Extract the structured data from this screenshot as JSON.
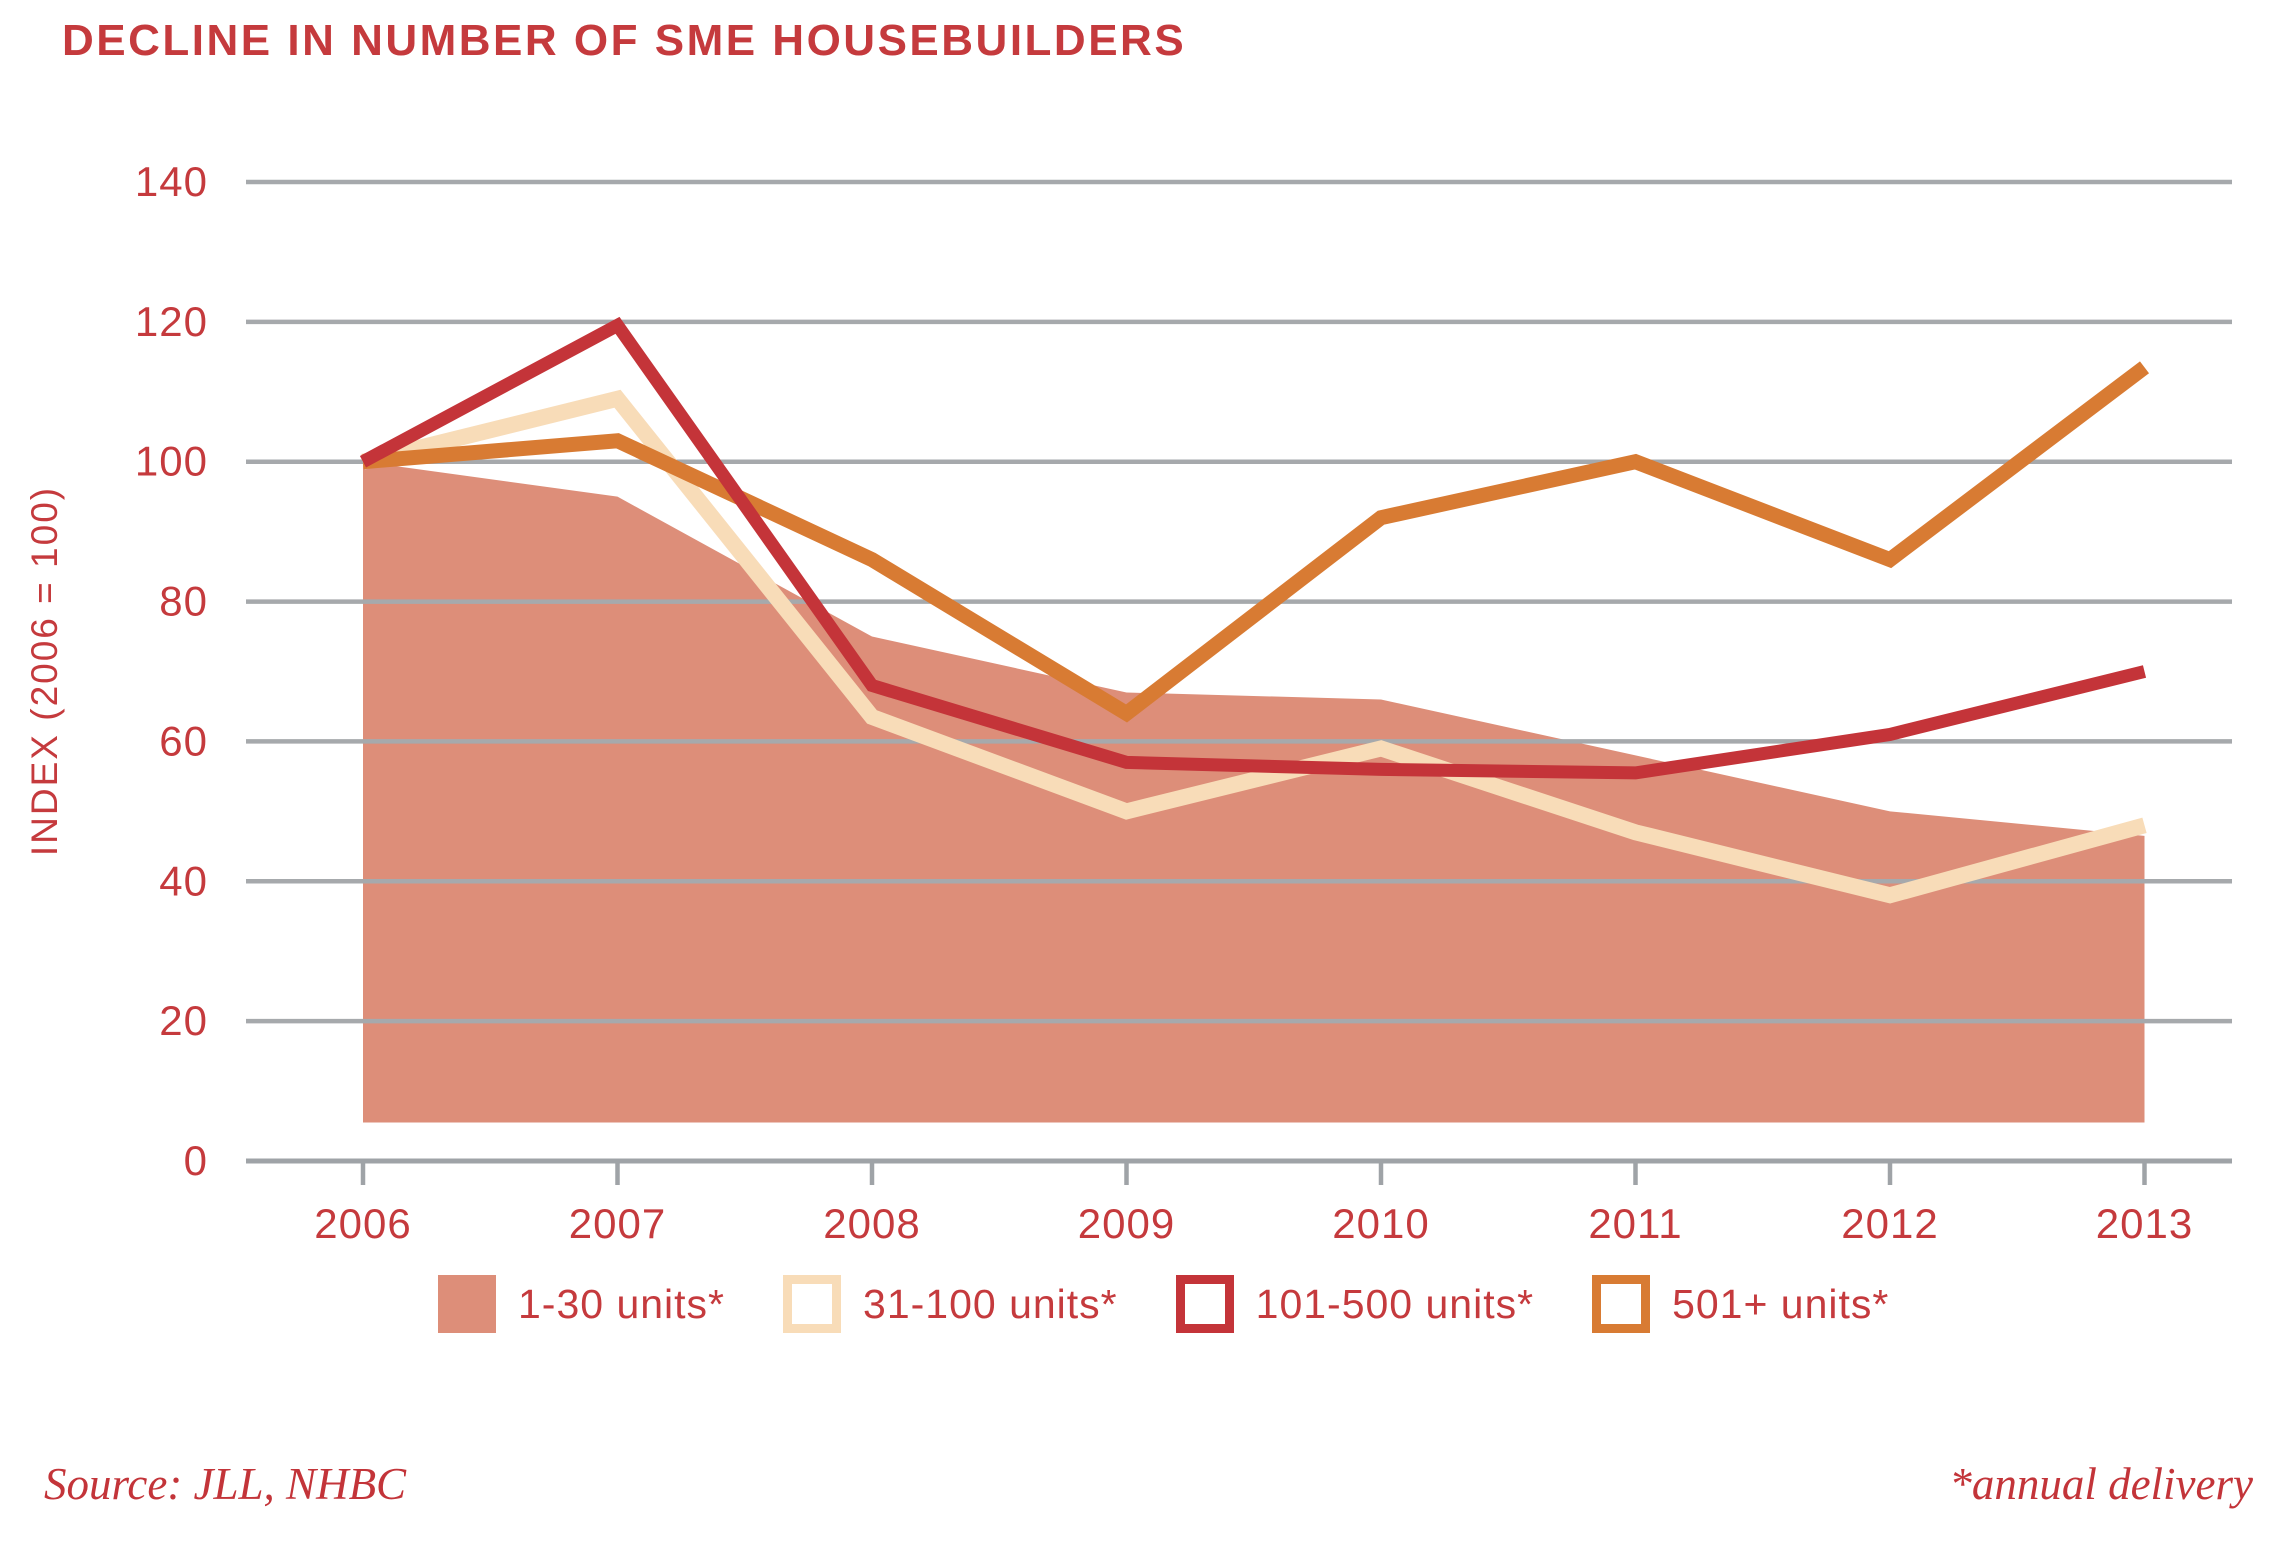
{
  "title": {
    "text": "DECLINE IN NUMBER OF SME HOUSEBUILDERS",
    "color": "#C53A3D"
  },
  "footer": {
    "source": "Source: JLL, NHBC",
    "note": "*annual delivery",
    "color": "#C33439"
  },
  "chart_data": {
    "type": "combo",
    "title": "DECLINE IN NUMBER OF SME HOUSEBUILDERS",
    "categories": [
      "2006",
      "2007",
      "2008",
      "2009",
      "2010",
      "2011",
      "2012",
      "2013"
    ],
    "xlabel": "",
    "ylabel": "INDEX (2006 = 100)",
    "ylim": [
      0,
      140
    ],
    "yticks": [
      0,
      20,
      40,
      60,
      80,
      100,
      120,
      140
    ],
    "grid": "horizontal",
    "legend_position": "bottom",
    "area_baseline": 5.5,
    "axis_color": "#9FA3A7",
    "grid_color": "#A6A9AC",
    "tick_label_color": "#C53A3D",
    "series": [
      {
        "name": "1-30 units*",
        "type": "area",
        "color": "#DD8E79",
        "z": 0,
        "values": [
          100,
          95,
          75,
          67,
          66,
          58,
          50,
          46.5
        ]
      },
      {
        "name": "31-100 units*",
        "type": "line",
        "color": "#F8DCB8",
        "z": 1,
        "width": 16,
        "values": [
          100,
          109,
          63.5,
          50,
          59,
          47,
          38,
          48
        ]
      },
      {
        "name": "101-500 units*",
        "type": "line",
        "color": "#C43439",
        "z": 3,
        "width": 13,
        "values": [
          100,
          119.5,
          68,
          57,
          56,
          55.5,
          61,
          70
        ]
      },
      {
        "name": "501+ units*",
        "type": "line",
        "color": "#D87B33",
        "z": 2,
        "width": 15,
        "values": [
          100,
          103,
          86,
          64,
          92,
          100,
          86,
          113.5
        ]
      }
    ]
  }
}
